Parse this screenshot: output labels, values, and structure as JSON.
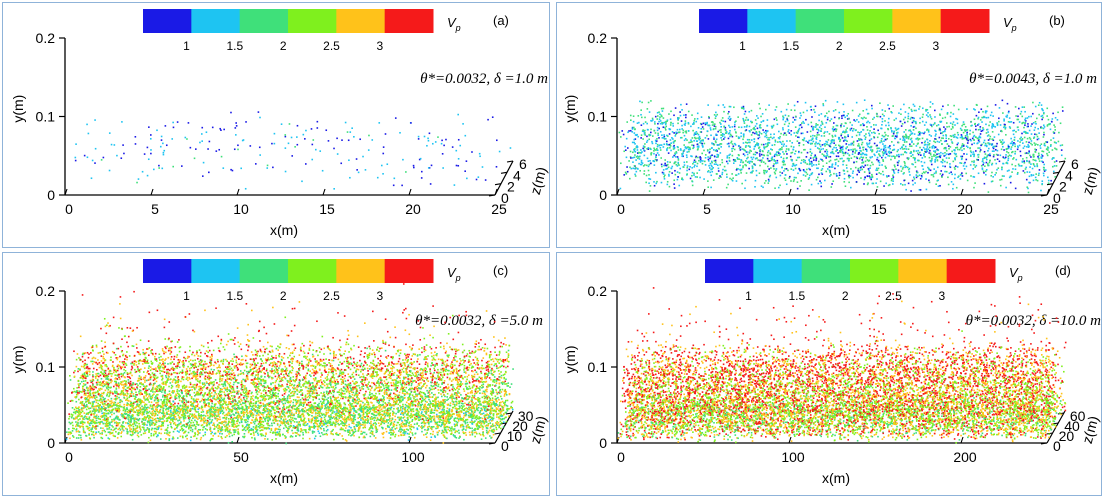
{
  "figure": {
    "colormap": [
      "#1a1ae6",
      "#1ec4f2",
      "#3fe07a",
      "#7ff01e",
      "#ffc21a",
      "#f51a1a"
    ],
    "colorbar_ticks": [
      "1",
      "1.5",
      "2",
      "2.5",
      "3"
    ],
    "colorbar_label": "V",
    "colorbar_label_sub": "p",
    "xlabel": "x(m)",
    "ylabel": "y(m)",
    "zlabel": "z(m)"
  },
  "chart_data": [
    {
      "type": "scatter",
      "panel_label": "(a)",
      "param_text": "θ*=0.0032, δ =1.0 m",
      "x_ticks": [
        "0",
        "5",
        "10",
        "15",
        "20",
        "25"
      ],
      "y_ticks": [
        "0",
        "0.1",
        "0.2"
      ],
      "z_ticks": [
        "0",
        "2",
        "4",
        "6"
      ],
      "xlim": [
        0,
        25
      ],
      "ylim": [
        0,
        0.2
      ],
      "zlim": [
        0,
        6
      ],
      "particle_density": "sparse",
      "velocity_mean": 1.2
    },
    {
      "type": "scatter",
      "panel_label": "(b)",
      "param_text": "θ*=0.0043, δ =1.0 m",
      "x_ticks": [
        "0",
        "5",
        "10",
        "15",
        "20",
        "25"
      ],
      "y_ticks": [
        "0",
        "0.1",
        "0.2"
      ],
      "z_ticks": [
        "0",
        "2",
        "4",
        "6"
      ],
      "xlim": [
        0,
        25
      ],
      "ylim": [
        0,
        0.2
      ],
      "zlim": [
        0,
        6
      ],
      "particle_density": "medium",
      "velocity_mean": 1.5
    },
    {
      "type": "scatter",
      "panel_label": "(c)",
      "param_text": "θ*=0.0032, δ =5.0 m",
      "x_ticks": [
        "0",
        "50",
        "100"
      ],
      "y_ticks": [
        "0",
        "0.1",
        "0.2"
      ],
      "z_ticks": [
        "0",
        "10",
        "20",
        "30"
      ],
      "xlim": [
        0,
        125
      ],
      "ylim": [
        0,
        0.2
      ],
      "zlim": [
        0,
        32
      ],
      "particle_density": "dense",
      "velocity_mean": 2.1
    },
    {
      "type": "scatter",
      "panel_label": "(d)",
      "param_text": "θ*=0.0032, δ =10.0 m",
      "x_ticks": [
        "0",
        "100",
        "200"
      ],
      "y_ticks": [
        "0",
        "0.1",
        "0.2"
      ],
      "z_ticks": [
        "0",
        "20",
        "40",
        "60"
      ],
      "xlim": [
        0,
        250
      ],
      "ylim": [
        0,
        0.2
      ],
      "zlim": [
        0,
        64
      ],
      "particle_density": "very dense",
      "velocity_mean": 2.4
    }
  ]
}
